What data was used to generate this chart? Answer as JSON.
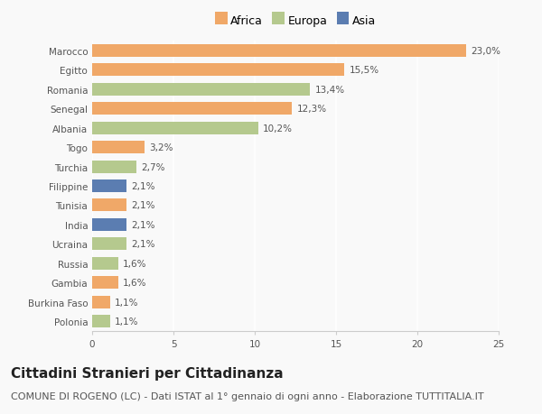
{
  "categories": [
    "Marocco",
    "Egitto",
    "Romania",
    "Senegal",
    "Albania",
    "Togo",
    "Turchia",
    "Filippine",
    "Tunisia",
    "India",
    "Ucraina",
    "Russia",
    "Gambia",
    "Burkina Faso",
    "Polonia"
  ],
  "values": [
    23.0,
    15.5,
    13.4,
    12.3,
    10.2,
    3.2,
    2.7,
    2.1,
    2.1,
    2.1,
    2.1,
    1.6,
    1.6,
    1.1,
    1.1
  ],
  "labels": [
    "23,0%",
    "15,5%",
    "13,4%",
    "12,3%",
    "10,2%",
    "3,2%",
    "2,7%",
    "2,1%",
    "2,1%",
    "2,1%",
    "2,1%",
    "1,6%",
    "1,6%",
    "1,1%",
    "1,1%"
  ],
  "continents": [
    "Africa",
    "Africa",
    "Europa",
    "Africa",
    "Europa",
    "Africa",
    "Europa",
    "Asia",
    "Africa",
    "Asia",
    "Europa",
    "Europa",
    "Africa",
    "Africa",
    "Europa"
  ],
  "colors": {
    "Africa": "#F0A868",
    "Europa": "#B5C98E",
    "Asia": "#5B7DB1"
  },
  "legend_labels": [
    "Africa",
    "Europa",
    "Asia"
  ],
  "xlim": [
    0,
    25
  ],
  "xticks": [
    0,
    5,
    10,
    15,
    20,
    25
  ],
  "title": "Cittadini Stranieri per Cittadinanza",
  "subtitle": "COMUNE DI ROGENO (LC) - Dati ISTAT al 1° gennaio di ogni anno - Elaborazione TUTTITALIA.IT",
  "background_color": "#f9f9f9",
  "bar_height": 0.65,
  "title_fontsize": 11,
  "subtitle_fontsize": 8,
  "label_fontsize": 7.5,
  "tick_fontsize": 7.5,
  "legend_fontsize": 9
}
